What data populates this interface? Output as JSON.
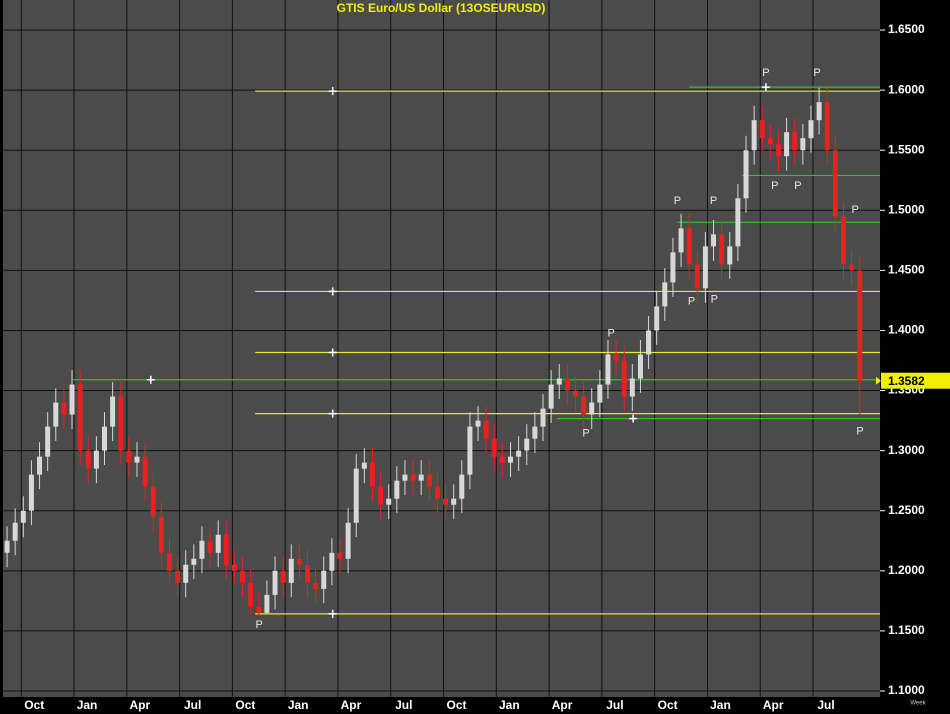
{
  "chart_data": {
    "type": "candlestick",
    "title": "GTIS  Euro/US  Dollar  (13OSEURUSD)",
    "x_unit_label": "Week",
    "xlim": [
      0,
      216
    ],
    "ylim": [
      1.095,
      1.675
    ],
    "xticks": [
      {
        "value": 4.5,
        "label": "Oct"
      },
      {
        "value": 17.5,
        "label": "Jan"
      },
      {
        "value": 30.5,
        "label": "Apr"
      },
      {
        "value": 43.5,
        "label": "Jul"
      },
      {
        "value": 56.5,
        "label": "Oct"
      },
      {
        "value": 69.5,
        "label": "Jan"
      },
      {
        "value": 82.5,
        "label": "Apr"
      },
      {
        "value": 95.5,
        "label": "Jul"
      },
      {
        "value": 108.5,
        "label": "Oct"
      },
      {
        "value": 121.5,
        "label": "Jan"
      },
      {
        "value": 134.5,
        "label": "Apr"
      },
      {
        "value": 147.5,
        "label": "Jul"
      },
      {
        "value": 160.5,
        "label": "Oct"
      },
      {
        "value": 173.5,
        "label": "Jan"
      },
      {
        "value": 186.5,
        "label": "Apr"
      },
      {
        "value": 199.5,
        "label": "Jul"
      }
    ],
    "yticks": [
      {
        "value": 1.65,
        "label": "1.6500"
      },
      {
        "value": 1.6,
        "label": "1.6000"
      },
      {
        "value": 1.55,
        "label": "1.5500"
      },
      {
        "value": 1.5,
        "label": "1.5000"
      },
      {
        "value": 1.45,
        "label": "1.4500"
      },
      {
        "value": 1.4,
        "label": "1.4000"
      },
      {
        "value": 1.35,
        "label": "1.3500"
      },
      {
        "value": 1.3,
        "label": "1.3000"
      },
      {
        "value": 1.25,
        "label": "1.2500"
      },
      {
        "value": 1.2,
        "label": "1.2000"
      },
      {
        "value": 1.15,
        "label": "1.1500"
      },
      {
        "value": 1.1,
        "label": "1.1000"
      }
    ],
    "grid": true,
    "up_color": "#d8d8d8",
    "down_color": "#e82020",
    "x": [
      1,
      3,
      5,
      7,
      9,
      11,
      13,
      15,
      17,
      19,
      21,
      23,
      25,
      27,
      29,
      31,
      33,
      35,
      37,
      39,
      41,
      43,
      45,
      47,
      49,
      51,
      53,
      55,
      57,
      59,
      61,
      63,
      65,
      67,
      69,
      71,
      73,
      75,
      77,
      79,
      81,
      83,
      85,
      87,
      89,
      91,
      93,
      95,
      97,
      99,
      101,
      103,
      105,
      107,
      109,
      111,
      113,
      115,
      117,
      119,
      121,
      123,
      125,
      127,
      129,
      131,
      133,
      135,
      137,
      139,
      141,
      143,
      145,
      147,
      149,
      151,
      153,
      155,
      157,
      159,
      161,
      163,
      165,
      167,
      169,
      171,
      173,
      175,
      177,
      179,
      181,
      183,
      185,
      187,
      189,
      191,
      193,
      195,
      197,
      199,
      201,
      203,
      205,
      207,
      209,
      211
    ],
    "open": [
      1.215,
      1.225,
      1.24,
      1.25,
      1.28,
      1.295,
      1.32,
      1.34,
      1.33,
      1.355,
      1.3,
      1.285,
      1.3,
      1.32,
      1.345,
      1.3,
      1.29,
      1.295,
      1.27,
      1.245,
      1.215,
      1.2,
      1.19,
      1.205,
      1.21,
      1.225,
      1.215,
      1.23,
      1.205,
      1.2,
      1.19,
      1.17,
      1.165,
      1.18,
      1.2,
      1.19,
      1.21,
      1.205,
      1.19,
      1.185,
      1.2,
      1.215,
      1.21,
      1.24,
      1.285,
      1.29,
      1.27,
      1.255,
      1.26,
      1.275,
      1.28,
      1.275,
      1.28,
      1.27,
      1.26,
      1.255,
      1.26,
      1.28,
      1.32,
      1.325,
      1.31,
      1.295,
      1.29,
      1.295,
      1.3,
      1.31,
      1.32,
      1.335,
      1.355,
      1.36,
      1.35,
      1.345,
      1.33,
      1.34,
      1.355,
      1.38,
      1.375,
      1.345,
      1.36,
      1.38,
      1.4,
      1.42,
      1.44,
      1.465,
      1.485,
      1.455,
      1.435,
      1.47,
      1.48,
      1.455,
      1.47,
      1.51,
      1.55,
      1.575,
      1.56,
      1.555,
      1.545,
      1.565,
      1.55,
      1.56,
      1.575,
      1.59,
      1.55,
      1.495,
      1.455,
      1.45
    ],
    "high": [
      1.237,
      1.252,
      1.262,
      1.292,
      1.307,
      1.332,
      1.352,
      1.352,
      1.367,
      1.367,
      1.312,
      1.312,
      1.332,
      1.357,
      1.357,
      1.312,
      1.307,
      1.307,
      1.282,
      1.257,
      1.227,
      1.212,
      1.217,
      1.222,
      1.237,
      1.237,
      1.242,
      1.242,
      1.217,
      1.212,
      1.202,
      1.182,
      1.192,
      1.212,
      1.212,
      1.222,
      1.222,
      1.217,
      1.202,
      1.212,
      1.227,
      1.227,
      1.252,
      1.297,
      1.302,
      1.302,
      1.282,
      1.272,
      1.287,
      1.292,
      1.292,
      1.292,
      1.292,
      1.282,
      1.272,
      1.272,
      1.292,
      1.332,
      1.337,
      1.337,
      1.322,
      1.307,
      1.307,
      1.312,
      1.322,
      1.332,
      1.347,
      1.367,
      1.372,
      1.372,
      1.362,
      1.357,
      1.352,
      1.367,
      1.392,
      1.392,
      1.387,
      1.372,
      1.392,
      1.412,
      1.432,
      1.452,
      1.477,
      1.497,
      1.497,
      1.467,
      1.482,
      1.492,
      1.492,
      1.482,
      1.522,
      1.562,
      1.587,
      1.587,
      1.572,
      1.567,
      1.577,
      1.577,
      1.572,
      1.587,
      1.602,
      1.602,
      1.562,
      1.507,
      1.467,
      1.462
    ],
    "low": [
      1.203,
      1.213,
      1.228,
      1.238,
      1.268,
      1.283,
      1.308,
      1.318,
      1.318,
      1.288,
      1.273,
      1.273,
      1.288,
      1.308,
      1.288,
      1.278,
      1.278,
      1.258,
      1.233,
      1.203,
      1.188,
      1.178,
      1.178,
      1.193,
      1.198,
      1.203,
      1.203,
      1.193,
      1.188,
      1.178,
      1.164,
      1.163,
      1.164,
      1.168,
      1.178,
      1.178,
      1.193,
      1.178,
      1.173,
      1.173,
      1.188,
      1.198,
      1.198,
      1.228,
      1.273,
      1.258,
      1.243,
      1.243,
      1.248,
      1.263,
      1.263,
      1.263,
      1.258,
      1.248,
      1.243,
      1.243,
      1.248,
      1.268,
      1.308,
      1.298,
      1.283,
      1.278,
      1.278,
      1.283,
      1.288,
      1.298,
      1.308,
      1.323,
      1.343,
      1.338,
      1.333,
      1.318,
      1.318,
      1.328,
      1.343,
      1.363,
      1.333,
      1.333,
      1.348,
      1.368,
      1.388,
      1.408,
      1.428,
      1.453,
      1.443,
      1.423,
      1.423,
      1.458,
      1.443,
      1.443,
      1.458,
      1.498,
      1.538,
      1.548,
      1.543,
      1.533,
      1.533,
      1.538,
      1.538,
      1.548,
      1.563,
      1.538,
      1.483,
      1.443,
      1.438,
      1.33
    ],
    "close": [
      1.225,
      1.24,
      1.25,
      1.28,
      1.295,
      1.32,
      1.34,
      1.33,
      1.355,
      1.3,
      1.285,
      1.3,
      1.32,
      1.345,
      1.3,
      1.29,
      1.295,
      1.27,
      1.245,
      1.215,
      1.2,
      1.19,
      1.205,
      1.21,
      1.225,
      1.215,
      1.23,
      1.205,
      1.2,
      1.19,
      1.17,
      1.165,
      1.18,
      1.2,
      1.19,
      1.21,
      1.205,
      1.19,
      1.185,
      1.2,
      1.215,
      1.21,
      1.24,
      1.285,
      1.29,
      1.27,
      1.255,
      1.26,
      1.275,
      1.28,
      1.275,
      1.28,
      1.27,
      1.26,
      1.255,
      1.26,
      1.28,
      1.32,
      1.325,
      1.31,
      1.295,
      1.29,
      1.295,
      1.3,
      1.31,
      1.32,
      1.335,
      1.355,
      1.36,
      1.35,
      1.345,
      1.33,
      1.34,
      1.355,
      1.38,
      1.375,
      1.345,
      1.36,
      1.38,
      1.4,
      1.42,
      1.44,
      1.465,
      1.485,
      1.455,
      1.435,
      1.47,
      1.48,
      1.455,
      1.47,
      1.51,
      1.55,
      1.575,
      1.56,
      1.555,
      1.545,
      1.565,
      1.55,
      1.56,
      1.575,
      1.59,
      1.55,
      1.495,
      1.455,
      1.45,
      1.358
    ],
    "levels": [
      {
        "value": 1.5992,
        "color": "#e8e830",
        "from": 62.1,
        "to": 216,
        "cross": 81.2
      },
      {
        "value": 1.4325,
        "color": "#e8e830",
        "from": 62.1,
        "to": 216,
        "cross": 81.2
      },
      {
        "value": 1.3817,
        "color": "#e8e830",
        "from": 62.1,
        "to": 216,
        "cross": 81.2
      },
      {
        "value": 1.3308,
        "color": "#e8e830",
        "from": 62.1,
        "to": 216,
        "cross": 81.2
      },
      {
        "value": 1.1642,
        "color": "#e8e830",
        "from": 62.1,
        "to": 216,
        "cross": 81.2
      },
      {
        "value": 1.6025,
        "color": "#30c030",
        "from": 169,
        "to": 216,
        "cross": 187.9
      },
      {
        "value": 1.529,
        "color": "#30c030",
        "from": 182,
        "to": 216
      },
      {
        "value": 1.49,
        "color": "#30c030",
        "from": 166,
        "to": 216
      },
      {
        "value": 1.359,
        "color": "#30c030",
        "from": 17.3,
        "to": 216,
        "cross": 36.4
      },
      {
        "value": 1.3267,
        "color": "#30c030",
        "from": 136.4,
        "to": 216,
        "cross": 155.2
      }
    ],
    "annotations": [
      {
        "text": "P",
        "x": 63.1,
        "y": 1.155
      },
      {
        "text": "P",
        "x": 143.6,
        "y": 1.314
      },
      {
        "text": "P",
        "x": 149.8,
        "y": 1.3975
      },
      {
        "text": "P",
        "x": 166.1,
        "y": 1.5075
      },
      {
        "text": "P",
        "x": 169.6,
        "y": 1.4242
      },
      {
        "text": "P",
        "x": 175,
        "y": 1.5075
      },
      {
        "text": "P",
        "x": 175.2,
        "y": 1.4258
      },
      {
        "text": "P",
        "x": 187.9,
        "y": 1.6142
      },
      {
        "text": "P",
        "x": 190.1,
        "y": 1.52
      },
      {
        "text": "P",
        "x": 195.8,
        "y": 1.52
      },
      {
        "text": "P",
        "x": 200.5,
        "y": 1.6142
      },
      {
        "text": "P",
        "x": 209.9,
        "y": 1.5
      },
      {
        "text": "P",
        "x": 211.1,
        "y": 1.3158
      }
    ],
    "last": {
      "value": 1.3582,
      "label": "1.3582",
      "color": "#f0f000"
    }
  }
}
